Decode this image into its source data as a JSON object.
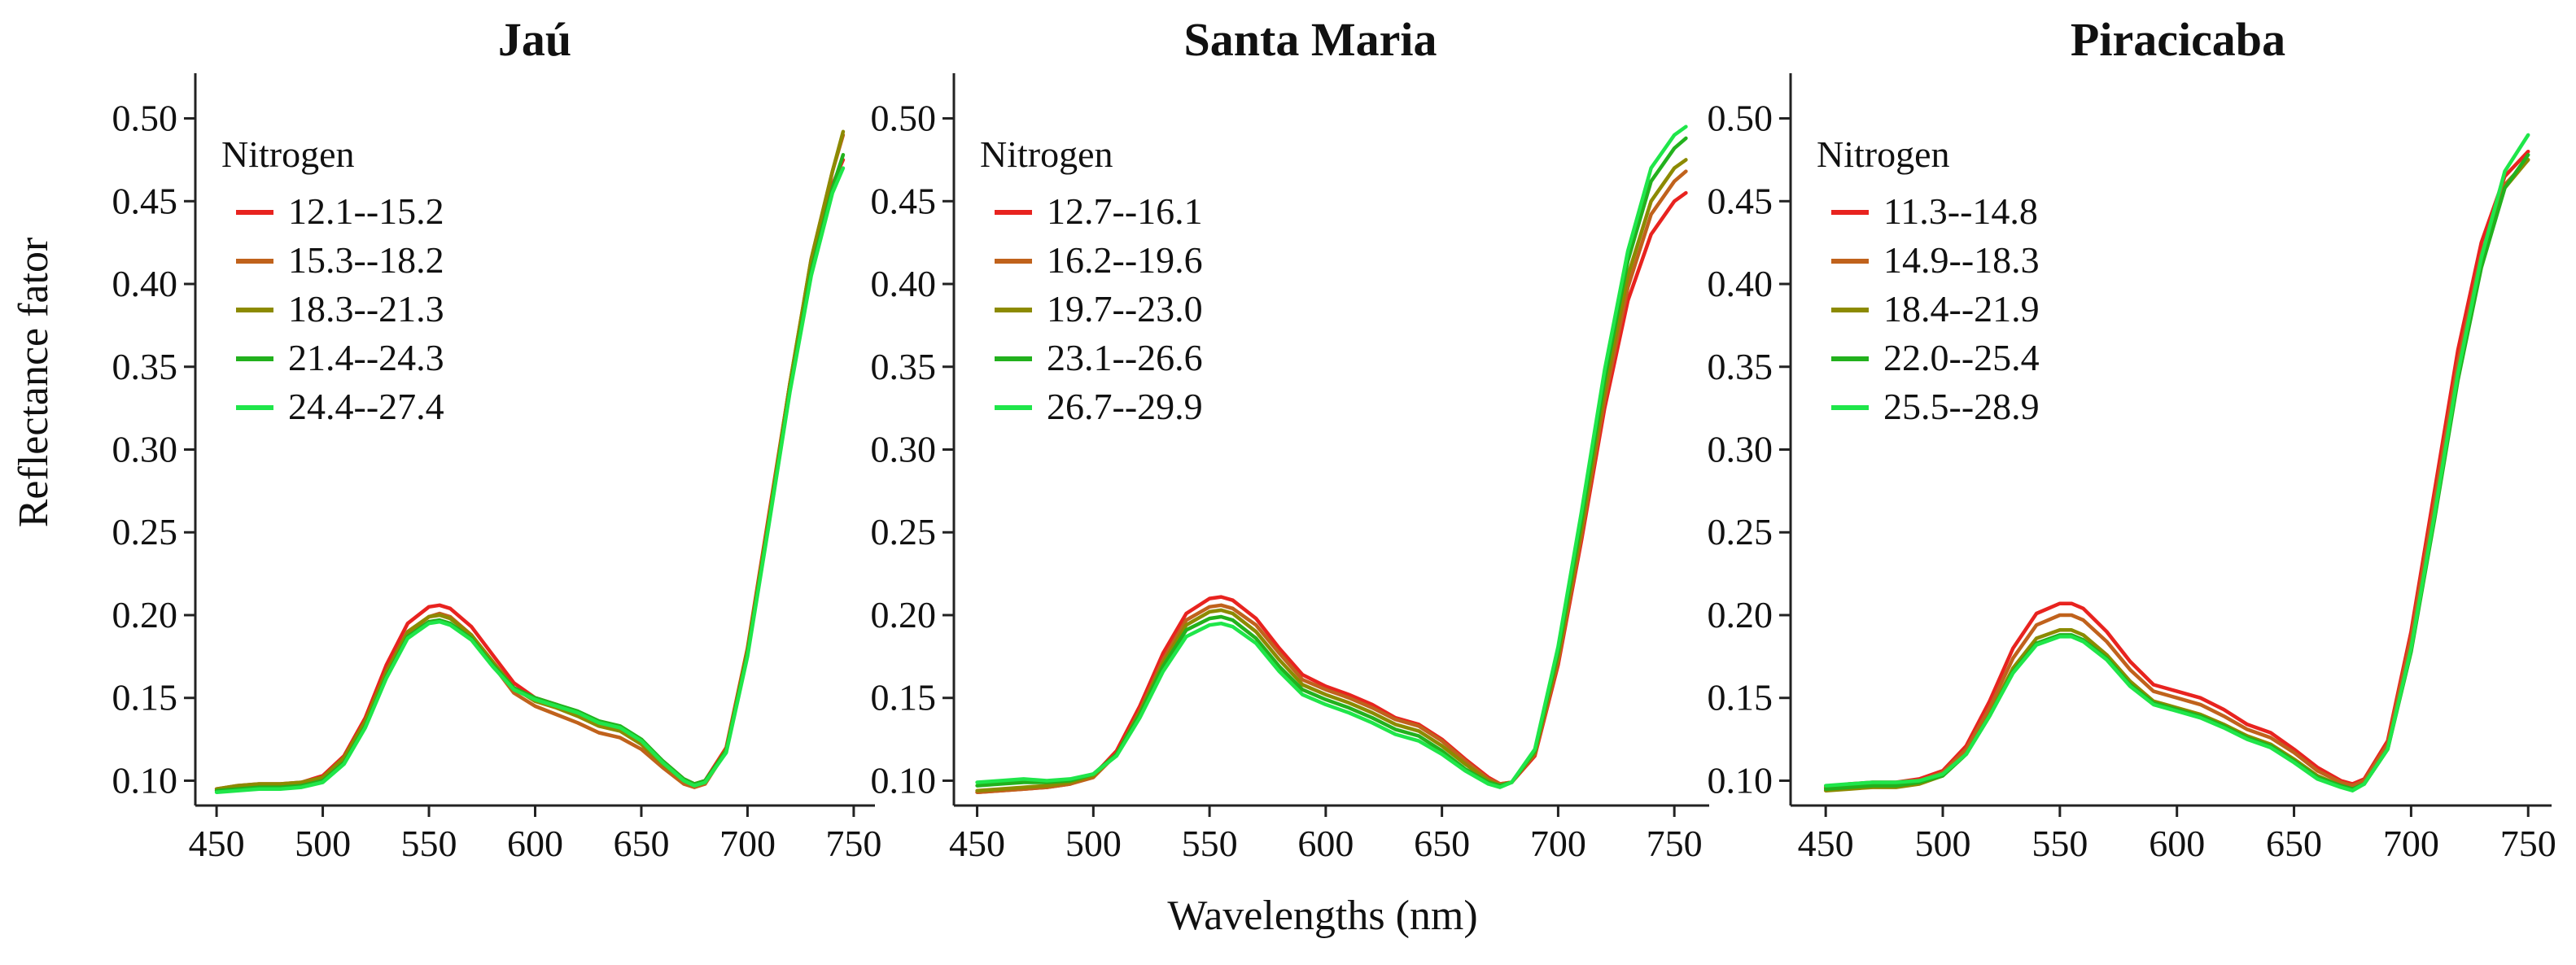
{
  "figure": {
    "ylabel": "Reflectance fator",
    "xlabel": "Wavelengths (nm)"
  },
  "colors": [
    "#e8231f",
    "#c0621c",
    "#8c8a00",
    "#22b11d",
    "#1fe64a"
  ],
  "chart_data": [
    {
      "type": "line",
      "title": "Jaú",
      "legend_title": "Nitrogen",
      "legend_position": "top-left",
      "xlim": [
        440,
        760
      ],
      "ylim": [
        0.085,
        0.515
      ],
      "xticks": [
        "450",
        "500",
        "550",
        "600",
        "650",
        "700",
        "750"
      ],
      "yticks": [
        "0.10",
        "0.15",
        "0.20",
        "0.25",
        "0.30",
        "0.35",
        "0.40",
        "0.45",
        "0.50"
      ],
      "x": [
        450,
        460,
        470,
        480,
        490,
        500,
        510,
        520,
        530,
        540,
        550,
        555,
        560,
        570,
        580,
        590,
        600,
        610,
        620,
        630,
        640,
        650,
        660,
        670,
        675,
        680,
        690,
        700,
        710,
        720,
        730,
        740,
        745
      ],
      "series": [
        {
          "name": "12.1--15.2",
          "values": [
            0.095,
            0.097,
            0.098,
            0.098,
            0.099,
            0.103,
            0.115,
            0.138,
            0.17,
            0.195,
            0.205,
            0.206,
            0.204,
            0.193,
            0.176,
            0.159,
            0.15,
            0.146,
            0.141,
            0.135,
            0.132,
            0.124,
            0.112,
            0.101,
            0.098,
            0.1,
            0.12,
            0.18,
            0.26,
            0.34,
            0.41,
            0.46,
            0.475
          ]
        },
        {
          "name": "15.3--18.2",
          "values": [
            0.094,
            0.096,
            0.097,
            0.097,
            0.098,
            0.101,
            0.112,
            0.134,
            0.164,
            0.189,
            0.199,
            0.201,
            0.199,
            0.188,
            0.17,
            0.153,
            0.145,
            0.14,
            0.135,
            0.129,
            0.126,
            0.119,
            0.108,
            0.098,
            0.096,
            0.098,
            0.118,
            0.178,
            0.258,
            0.34,
            0.415,
            0.468,
            0.49
          ]
        },
        {
          "name": "18.3--21.3",
          "values": [
            0.095,
            0.097,
            0.098,
            0.098,
            0.099,
            0.102,
            0.114,
            0.136,
            0.166,
            0.19,
            0.199,
            0.2,
            0.198,
            0.188,
            0.172,
            0.156,
            0.148,
            0.144,
            0.139,
            0.133,
            0.13,
            0.122,
            0.11,
            0.1,
            0.097,
            0.099,
            0.119,
            0.179,
            0.258,
            0.34,
            0.415,
            0.468,
            0.492
          ]
        },
        {
          "name": "21.4--24.3",
          "values": [
            0.094,
            0.095,
            0.096,
            0.096,
            0.097,
            0.1,
            0.111,
            0.133,
            0.163,
            0.187,
            0.196,
            0.197,
            0.195,
            0.186,
            0.17,
            0.156,
            0.15,
            0.146,
            0.142,
            0.136,
            0.133,
            0.125,
            0.112,
            0.101,
            0.098,
            0.1,
            0.118,
            0.176,
            0.255,
            0.336,
            0.408,
            0.458,
            0.478
          ]
        },
        {
          "name": "24.4--27.4",
          "values": [
            0.093,
            0.094,
            0.095,
            0.095,
            0.096,
            0.099,
            0.11,
            0.132,
            0.162,
            0.186,
            0.195,
            0.196,
            0.194,
            0.185,
            0.169,
            0.155,
            0.149,
            0.145,
            0.141,
            0.135,
            0.132,
            0.124,
            0.111,
            0.1,
            0.097,
            0.099,
            0.117,
            0.175,
            0.254,
            0.335,
            0.405,
            0.455,
            0.47
          ]
        }
      ]
    },
    {
      "type": "line",
      "title": "Santa Maria",
      "legend_title": "Nitrogen",
      "legend_position": "top-left",
      "xlim": [
        440,
        765
      ],
      "ylim": [
        0.085,
        0.515
      ],
      "xticks": [
        "450",
        "500",
        "550",
        "600",
        "650",
        "700",
        "750"
      ],
      "yticks": [
        "0.10",
        "0.15",
        "0.20",
        "0.25",
        "0.30",
        "0.35",
        "0.40",
        "0.45",
        "0.50"
      ],
      "x": [
        450,
        460,
        470,
        480,
        490,
        500,
        510,
        520,
        530,
        540,
        550,
        555,
        560,
        570,
        580,
        590,
        600,
        610,
        620,
        630,
        640,
        650,
        660,
        670,
        675,
        680,
        690,
        700,
        710,
        720,
        730,
        740,
        750,
        755
      ],
      "series": [
        {
          "name": "12.7--16.1",
          "values": [
            0.093,
            0.094,
            0.095,
            0.096,
            0.098,
            0.103,
            0.118,
            0.145,
            0.177,
            0.201,
            0.21,
            0.211,
            0.209,
            0.198,
            0.18,
            0.164,
            0.157,
            0.152,
            0.146,
            0.138,
            0.134,
            0.125,
            0.113,
            0.102,
            0.098,
            0.099,
            0.115,
            0.17,
            0.245,
            0.325,
            0.39,
            0.43,
            0.45,
            0.455
          ]
        },
        {
          "name": "16.2--19.6",
          "values": [
            0.093,
            0.094,
            0.095,
            0.096,
            0.098,
            0.102,
            0.116,
            0.142,
            0.173,
            0.197,
            0.205,
            0.206,
            0.204,
            0.194,
            0.177,
            0.161,
            0.155,
            0.15,
            0.144,
            0.137,
            0.133,
            0.124,
            0.112,
            0.101,
            0.098,
            0.099,
            0.116,
            0.172,
            0.248,
            0.33,
            0.398,
            0.442,
            0.462,
            0.468
          ]
        },
        {
          "name": "19.7--23.0",
          "values": [
            0.094,
            0.095,
            0.096,
            0.097,
            0.099,
            0.103,
            0.116,
            0.141,
            0.171,
            0.194,
            0.202,
            0.203,
            0.201,
            0.19,
            0.173,
            0.158,
            0.152,
            0.147,
            0.141,
            0.134,
            0.13,
            0.121,
            0.11,
            0.1,
            0.097,
            0.099,
            0.117,
            0.175,
            0.252,
            0.335,
            0.405,
            0.45,
            0.47,
            0.475
          ]
        },
        {
          "name": "23.1--26.6",
          "values": [
            0.097,
            0.098,
            0.099,
            0.099,
            0.1,
            0.104,
            0.116,
            0.14,
            0.169,
            0.191,
            0.198,
            0.199,
            0.197,
            0.186,
            0.169,
            0.155,
            0.149,
            0.144,
            0.138,
            0.131,
            0.127,
            0.118,
            0.107,
            0.099,
            0.097,
            0.099,
            0.118,
            0.178,
            0.257,
            0.342,
            0.414,
            0.462,
            0.482,
            0.488
          ]
        },
        {
          "name": "26.7--29.9",
          "values": [
            0.099,
            0.1,
            0.101,
            0.1,
            0.101,
            0.104,
            0.115,
            0.138,
            0.166,
            0.187,
            0.194,
            0.195,
            0.193,
            0.183,
            0.166,
            0.152,
            0.146,
            0.141,
            0.135,
            0.128,
            0.124,
            0.116,
            0.106,
            0.098,
            0.096,
            0.099,
            0.119,
            0.181,
            0.262,
            0.348,
            0.42,
            0.47,
            0.49,
            0.495
          ]
        }
      ]
    },
    {
      "type": "line",
      "title": "Piracicaba",
      "legend_title": "Nitrogen",
      "legend_position": "top-left",
      "xlim": [
        435,
        760
      ],
      "ylim": [
        0.085,
        0.515
      ],
      "xticks": [
        "450",
        "500",
        "550",
        "600",
        "650",
        "700",
        "750"
      ],
      "yticks": [
        "0.10",
        "0.15",
        "0.20",
        "0.25",
        "0.30",
        "0.35",
        "0.40",
        "0.45",
        "0.50"
      ],
      "x": [
        450,
        460,
        470,
        480,
        490,
        500,
        510,
        520,
        530,
        540,
        550,
        555,
        560,
        570,
        580,
        590,
        600,
        610,
        620,
        630,
        640,
        650,
        660,
        670,
        675,
        680,
        690,
        700,
        710,
        720,
        730,
        740,
        750
      ],
      "series": [
        {
          "name": "11.3--14.8",
          "values": [
            0.096,
            0.098,
            0.099,
            0.099,
            0.101,
            0.106,
            0.121,
            0.148,
            0.18,
            0.201,
            0.207,
            0.207,
            0.204,
            0.19,
            0.172,
            0.158,
            0.154,
            0.15,
            0.143,
            0.134,
            0.129,
            0.119,
            0.108,
            0.1,
            0.098,
            0.101,
            0.124,
            0.19,
            0.275,
            0.36,
            0.425,
            0.465,
            0.48
          ]
        },
        {
          "name": "14.9--18.3",
          "values": [
            0.096,
            0.097,
            0.098,
            0.098,
            0.1,
            0.105,
            0.119,
            0.144,
            0.174,
            0.194,
            0.2,
            0.2,
            0.197,
            0.184,
            0.167,
            0.154,
            0.15,
            0.146,
            0.139,
            0.131,
            0.126,
            0.117,
            0.106,
            0.099,
            0.097,
            0.1,
            0.122,
            0.186,
            0.268,
            0.352,
            0.418,
            0.46,
            0.475
          ]
        },
        {
          "name": "18.4--21.9",
          "values": [
            0.094,
            0.095,
            0.096,
            0.096,
            0.098,
            0.103,
            0.116,
            0.14,
            0.168,
            0.186,
            0.191,
            0.191,
            0.188,
            0.176,
            0.16,
            0.148,
            0.144,
            0.14,
            0.134,
            0.127,
            0.122,
            0.113,
            0.103,
            0.097,
            0.095,
            0.098,
            0.119,
            0.18,
            0.26,
            0.345,
            0.412,
            0.458,
            0.475
          ]
        },
        {
          "name": "22.0--25.4",
          "values": [
            0.095,
            0.096,
            0.097,
            0.097,
            0.099,
            0.103,
            0.116,
            0.139,
            0.166,
            0.183,
            0.188,
            0.188,
            0.185,
            0.174,
            0.158,
            0.147,
            0.143,
            0.139,
            0.133,
            0.126,
            0.121,
            0.112,
            0.102,
            0.097,
            0.095,
            0.098,
            0.119,
            0.178,
            0.258,
            0.342,
            0.41,
            0.458,
            0.478
          ]
        },
        {
          "name": "25.5--28.9",
          "values": [
            0.097,
            0.098,
            0.099,
            0.099,
            0.1,
            0.104,
            0.116,
            0.139,
            0.165,
            0.182,
            0.187,
            0.187,
            0.184,
            0.173,
            0.157,
            0.146,
            0.142,
            0.138,
            0.132,
            0.125,
            0.12,
            0.111,
            0.101,
            0.096,
            0.094,
            0.098,
            0.119,
            0.18,
            0.261,
            0.346,
            0.416,
            0.468,
            0.49
          ]
        }
      ]
    }
  ]
}
